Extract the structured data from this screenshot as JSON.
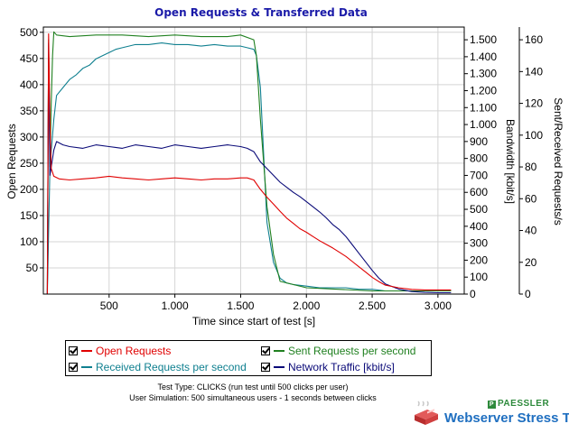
{
  "chart_data": {
    "type": "line",
    "title": "Open Requests & Transferred Data",
    "xlabel": "Time since start of test [s]",
    "xlim": [
      0,
      3200
    ],
    "x_ticks": [
      "500",
      "1.000",
      "1.500",
      "2.000",
      "2.500",
      "3.000"
    ],
    "x_tick_values": [
      500,
      1000,
      1500,
      2000,
      2500,
      3000
    ],
    "grid": true,
    "axes": [
      {
        "id": "open",
        "side": "left",
        "label": "Open Requests",
        "ylim": [
          0,
          510
        ],
        "ticks": [
          "50",
          "100",
          "150",
          "200",
          "250",
          "300",
          "350",
          "400",
          "450",
          "500"
        ],
        "tick_values": [
          50,
          100,
          150,
          200,
          250,
          300,
          350,
          400,
          450,
          500
        ]
      },
      {
        "id": "bandwidth",
        "side": "right",
        "label": "Bandwidth [kbit/s]",
        "ylim": [
          0,
          1575
        ],
        "ticks": [
          "0",
          "100",
          "200",
          "300",
          "400",
          "500",
          "600",
          "700",
          "800",
          "900",
          "1.000",
          "1.100",
          "1.200",
          "1.300",
          "1.400",
          "1.500"
        ],
        "tick_values": [
          0,
          100,
          200,
          300,
          400,
          500,
          600,
          700,
          800,
          900,
          1000,
          1100,
          1200,
          1300,
          1400,
          1500
        ]
      },
      {
        "id": "rps",
        "side": "right",
        "label": "Sent/Received Requests/s",
        "ylim": [
          0,
          168
        ],
        "ticks": [
          "0",
          "20",
          "40",
          "60",
          "80",
          "100",
          "120",
          "140",
          "160"
        ],
        "tick_values": [
          0,
          20,
          40,
          60,
          80,
          100,
          120,
          140,
          160
        ]
      }
    ],
    "series": [
      {
        "name": "Open Requests",
        "color": "#e00000",
        "axis": "open",
        "x": [
          30,
          40,
          50,
          60,
          80,
          120,
          200,
          300,
          400,
          500,
          600,
          700,
          800,
          900,
          1000,
          1100,
          1200,
          1300,
          1400,
          1500,
          1550,
          1600,
          1650,
          1700,
          1750,
          1800,
          1850,
          1900,
          1950,
          2000,
          2050,
          2100,
          2150,
          2200,
          2250,
          2300,
          2350,
          2400,
          2450,
          2500,
          2550,
          2600,
          2700,
          2800,
          2900,
          3000,
          3100
        ],
        "y": [
          0,
          497,
          330,
          240,
          225,
          220,
          218,
          220,
          222,
          225,
          222,
          220,
          218,
          220,
          222,
          220,
          218,
          220,
          220,
          222,
          222,
          218,
          200,
          185,
          172,
          158,
          145,
          135,
          125,
          118,
          110,
          102,
          95,
          88,
          80,
          72,
          62,
          52,
          42,
          32,
          24,
          17,
          12,
          9,
          8,
          8,
          8
        ]
      },
      {
        "name": "Sent Requests per second",
        "color": "#208020",
        "axis": "rps",
        "x": [
          30,
          40,
          50,
          60,
          70,
          80,
          100,
          200,
          400,
          600,
          800,
          1000,
          1200,
          1400,
          1500,
          1600,
          1620,
          1650,
          1700,
          1750,
          1800,
          2000,
          2500,
          3000,
          3100
        ],
        "y": [
          0,
          160,
          80,
          120,
          150,
          165,
          163,
          162,
          163,
          163,
          162,
          163,
          162,
          162,
          163,
          160,
          150,
          110,
          55,
          25,
          8,
          4,
          2,
          2,
          2
        ]
      },
      {
        "name": "Received Requests per second",
        "color": "#108090",
        "axis": "rps",
        "x": [
          30,
          50,
          80,
          100,
          150,
          200,
          250,
          300,
          350,
          400,
          450,
          500,
          550,
          600,
          650,
          700,
          800,
          900,
          1000,
          1100,
          1200,
          1300,
          1400,
          1500,
          1550,
          1600,
          1620,
          1650,
          1680,
          1700,
          1750,
          1800,
          1850,
          1900,
          2000,
          2100,
          2200,
          2300,
          2400,
          2500,
          2600,
          2700,
          3000,
          3100
        ],
        "y": [
          0,
          80,
          110,
          125,
          130,
          135,
          138,
          142,
          144,
          148,
          150,
          152,
          154,
          155,
          156,
          157,
          157,
          158,
          157,
          157,
          156,
          157,
          156,
          156,
          155,
          154,
          150,
          130,
          80,
          45,
          20,
          10,
          7,
          6,
          5,
          4,
          4,
          4,
          3,
          3,
          2,
          2,
          2,
          2
        ]
      },
      {
        "name": "Network Traffic [kbit/s]",
        "color": "#0a0a78",
        "axis": "bandwidth",
        "x": [
          30,
          40,
          50,
          80,
          100,
          150,
          200,
          300,
          400,
          500,
          600,
          700,
          800,
          900,
          1000,
          1100,
          1200,
          1300,
          1400,
          1500,
          1550,
          1600,
          1650,
          1700,
          1750,
          1800,
          1850,
          1900,
          1950,
          2000,
          2050,
          2100,
          2150,
          2200,
          2250,
          2300,
          2350,
          2400,
          2450,
          2500,
          2550,
          2600,
          2700,
          2800,
          2900,
          3000,
          3100
        ],
        "y": [
          0,
          1480,
          700,
          850,
          900,
          880,
          870,
          860,
          880,
          870,
          860,
          880,
          870,
          860,
          880,
          870,
          860,
          870,
          880,
          870,
          860,
          840,
          780,
          740,
          700,
          660,
          630,
          600,
          575,
          545,
          515,
          485,
          450,
          410,
          380,
          340,
          290,
          240,
          190,
          140,
          95,
          60,
          30,
          15,
          10,
          8,
          8
        ]
      }
    ]
  },
  "legend": [
    {
      "label": "Open Requests",
      "color": "#e00000"
    },
    {
      "label": "Sent Requests per second",
      "color": "#208020"
    },
    {
      "label": "Received Requests per second",
      "color": "#108090"
    },
    {
      "label": "Network Traffic [kbit/s]",
      "color": "#0a0a78"
    }
  ],
  "notes": {
    "line1": "Test Type: CLICKS (run test until 500 clicks per user)",
    "line2": "User Simulation: 500 simultaneous users - 1 seconds between clicks"
  },
  "logo": {
    "brand": "PAESSLER",
    "brand_mark": "P",
    "product": "Webserver Stress Tool"
  }
}
